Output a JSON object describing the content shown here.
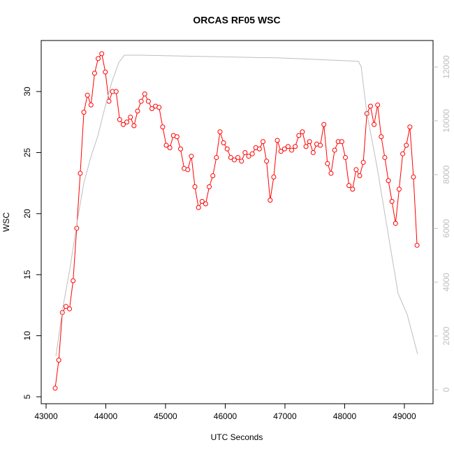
{
  "chart_data": {
    "type": "line",
    "title": "ORCAS RF05 WSC",
    "x_label": "UTC Seconds",
    "y_label": "WSC",
    "xlim": [
      42918,
      49480
    ],
    "xticks": [
      43000,
      44000,
      45000,
      46000,
      47000,
      48000,
      49000
    ],
    "ylim": [
      4.43,
      34.18
    ],
    "yticks": [
      5,
      10,
      15,
      20,
      25,
      30
    ],
    "y2lim": [
      -519,
      12987
    ],
    "y2ticks": [
      0,
      2000,
      4000,
      6000,
      8000,
      10000,
      12000
    ],
    "y2_color": "#bebebe",
    "series": [
      {
        "name": "WSC",
        "color": "#ff0000",
        "markers": true,
        "x": [
          43152,
          43212,
          43272,
          43332,
          43392,
          43452,
          43512,
          43572,
          43632,
          43692,
          43752,
          43812,
          43872,
          43932,
          43992,
          44052,
          44112,
          44172,
          44232,
          44292,
          44352,
          44412,
          44472,
          44532,
          44592,
          44652,
          44712,
          44772,
          44832,
          44892,
          44952,
          45012,
          45072,
          45132,
          45192,
          45252,
          45312,
          45372,
          45432,
          45492,
          45552,
          45612,
          45672,
          45732,
          45792,
          45852,
          45912,
          45972,
          46032,
          46092,
          46152,
          46212,
          46272,
          46332,
          46392,
          46452,
          46512,
          46572,
          46632,
          46692,
          46752,
          46812,
          46872,
          46932,
          46992,
          47052,
          47112,
          47172,
          47232,
          47292,
          47352,
          47412,
          47472,
          47532,
          47592,
          47652,
          47712,
          47772,
          47832,
          47892,
          47952,
          48012,
          48072,
          48132,
          48192,
          48252,
          48312,
          48372,
          48432,
          48492,
          48552,
          48612,
          48672,
          48732,
          48792,
          48852,
          48912,
          48972,
          49032,
          49092,
          49152,
          49212
        ],
        "values": [
          5.7,
          8.0,
          11.9,
          12.4,
          12.2,
          14.5,
          18.8,
          23.3,
          28.3,
          29.7,
          28.9,
          31.5,
          32.7,
          33.1,
          31.6,
          29.2,
          30.0,
          30.0,
          27.7,
          27.3,
          27.5,
          27.9,
          27.2,
          28.4,
          29.2,
          29.8,
          29.2,
          28.6,
          28.8,
          28.7,
          27.1,
          25.6,
          25.4,
          26.4,
          26.3,
          25.3,
          23.7,
          23.6,
          24.7,
          22.2,
          20.5,
          21.0,
          20.8,
          22.2,
          23.1,
          24.6,
          26.7,
          25.8,
          25.3,
          24.6,
          24.4,
          24.6,
          24.3,
          25.0,
          24.7,
          24.9,
          25.4,
          25.3,
          25.9,
          24.3,
          21.1,
          23.0,
          26.0,
          25.1,
          25.3,
          25.5,
          25.2,
          25.5,
          26.4,
          26.7,
          25.5,
          25.9,
          25.0,
          25.7,
          25.6,
          27.3,
          24.1,
          23.3,
          25.2,
          25.9,
          25.9,
          24.6,
          22.3,
          22.0,
          23.6,
          23.1,
          24.2,
          28.2,
          28.8,
          27.3,
          28.9,
          26.3,
          24.6,
          22.7,
          21.0,
          19.2,
          22.0,
          24.9,
          25.6,
          27.1,
          23.0,
          17.4
        ]
      },
      {
        "color": "#bebebe",
        "axis": "y2",
        "markers": false,
        "x": [
          43164,
          43281,
          43398,
          43515,
          43632,
          43749,
          43865,
          43982,
          44099,
          44216,
          44310,
          44567,
          45737,
          46906,
          48076,
          48228,
          48275,
          48368,
          48544,
          48719,
          48895,
          49047,
          49222
        ],
        "values": [
          1250,
          3060,
          4490,
          6180,
          7690,
          8650,
          9430,
          10470,
          11430,
          12160,
          12440,
          12440,
          12390,
          12340,
          12230,
          12210,
          12030,
          10340,
          8260,
          5920,
          3580,
          2800,
          1320
        ]
      }
    ]
  }
}
